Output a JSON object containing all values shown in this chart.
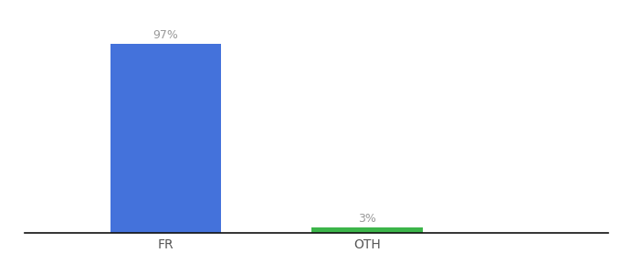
{
  "categories": [
    "FR",
    "OTH"
  ],
  "values": [
    97,
    3
  ],
  "bar_colors": [
    "#4472DB",
    "#3CB54A"
  ],
  "label_texts": [
    "97%",
    "3%"
  ],
  "label_color": "#999999",
  "background_color": "#ffffff",
  "xlabel_color": "#555555",
  "bar_width": 0.55,
  "x_positions": [
    1,
    2
  ],
  "xlim": [
    0.3,
    3.2
  ],
  "ylim": [
    0,
    108
  ],
  "figsize": [
    6.8,
    3.0
  ],
  "dpi": 100
}
